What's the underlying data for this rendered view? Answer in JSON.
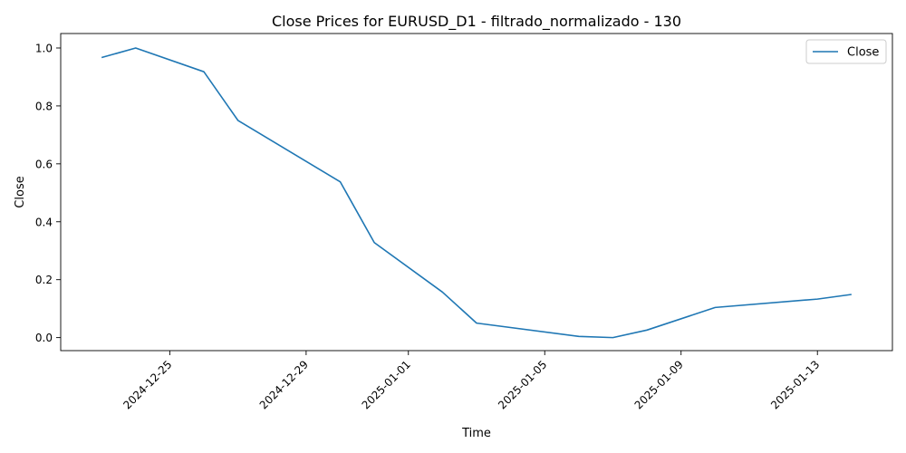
{
  "chart_data": {
    "type": "line",
    "title": "Close Prices for EURUSD_D1 - filtrado_normalizado - 130",
    "xlabel": "Time",
    "ylabel": "Close",
    "legend_position": "top-right",
    "grid": false,
    "xlim": [
      "2024-12-21.8",
      "2025-01-15.2"
    ],
    "ylim": [
      -0.045,
      1.05
    ],
    "x_ticks": [
      "2024-12-25",
      "2024-12-29",
      "2025-01-01",
      "2025-01-05",
      "2025-01-09",
      "2025-01-13"
    ],
    "y_ticks": [
      "0.0",
      "0.2",
      "0.4",
      "0.6",
      "0.8",
      "1.0"
    ],
    "series": [
      {
        "name": "Close",
        "color": "#1f77b4",
        "x": [
          "2024-12-23",
          "2024-12-24",
          "2024-12-26",
          "2024-12-27",
          "2024-12-30",
          "2024-12-31",
          "2025-01-02",
          "2025-01-03",
          "2025-01-06",
          "2025-01-07",
          "2025-01-08",
          "2025-01-10",
          "2025-01-13",
          "2025-01-14"
        ],
        "values": [
          0.967,
          1.0,
          0.918,
          0.75,
          0.538,
          0.328,
          0.157,
          0.05,
          0.004,
          0.0,
          0.026,
          0.104,
          0.133,
          0.149
        ]
      }
    ]
  }
}
